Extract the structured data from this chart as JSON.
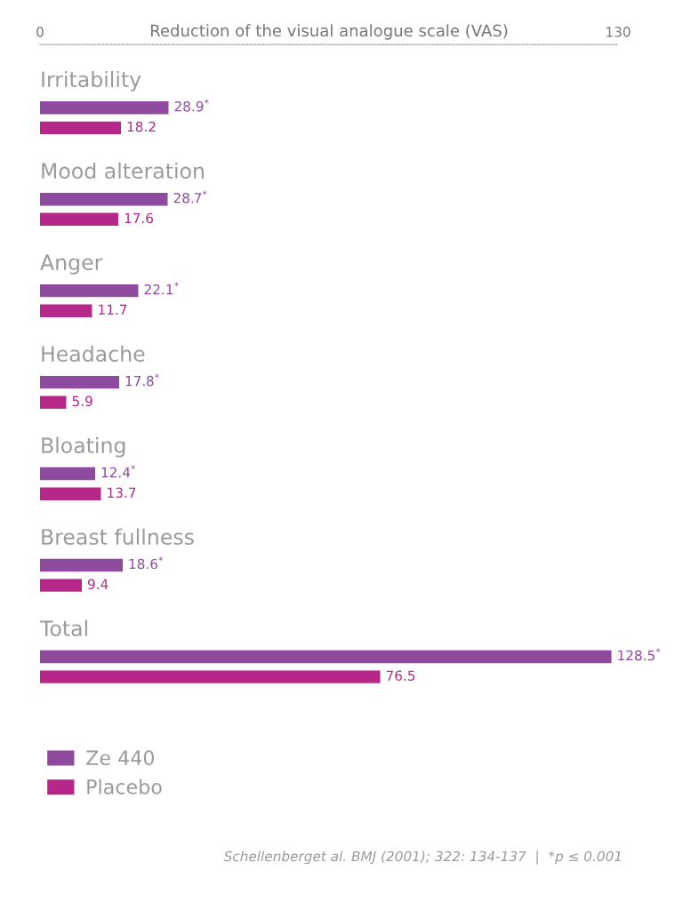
{
  "chart_data": {
    "type": "bar",
    "orientation": "horizontal",
    "xlabel": "Reduction of the visual analogue scale (VAS)",
    "xlim": [
      0,
      130
    ],
    "xticks": [
      0,
      130
    ],
    "categories": [
      "Irritability",
      "Mood alteration",
      "Anger",
      "Headache",
      "Bloating",
      "Breast fullness",
      "Total"
    ],
    "series": [
      {
        "name": "Ze 440",
        "color": "#8e4a9c",
        "values": [
          28.9,
          28.7,
          22.1,
          17.8,
          12.4,
          18.6,
          128.5
        ],
        "value_labels": [
          "28.9$^{*}$",
          "28.7$^{*}$",
          "22.1$^{*}$",
          "17.8$^{*}$",
          "12.4$^{*}$",
          "18.6$^{*}$",
          "128.5$^{*}$"
        ]
      },
      {
        "name": "Placebo",
        "color": "#b5288a",
        "values": [
          18.2,
          17.6,
          11.7,
          5.9,
          13.7,
          9.4,
          76.5
        ],
        "value_labels": [
          "18.2",
          "17.6",
          "11.7",
          "5.9",
          "13.7",
          "9.4",
          "76.5"
        ]
      }
    ],
    "legend": "bottom left",
    "grid": false,
    "annotations": [
      "Schellenberget al. BMJ (2001); 322: 134-137  |  *p ≤ 0.001"
    ]
  }
}
